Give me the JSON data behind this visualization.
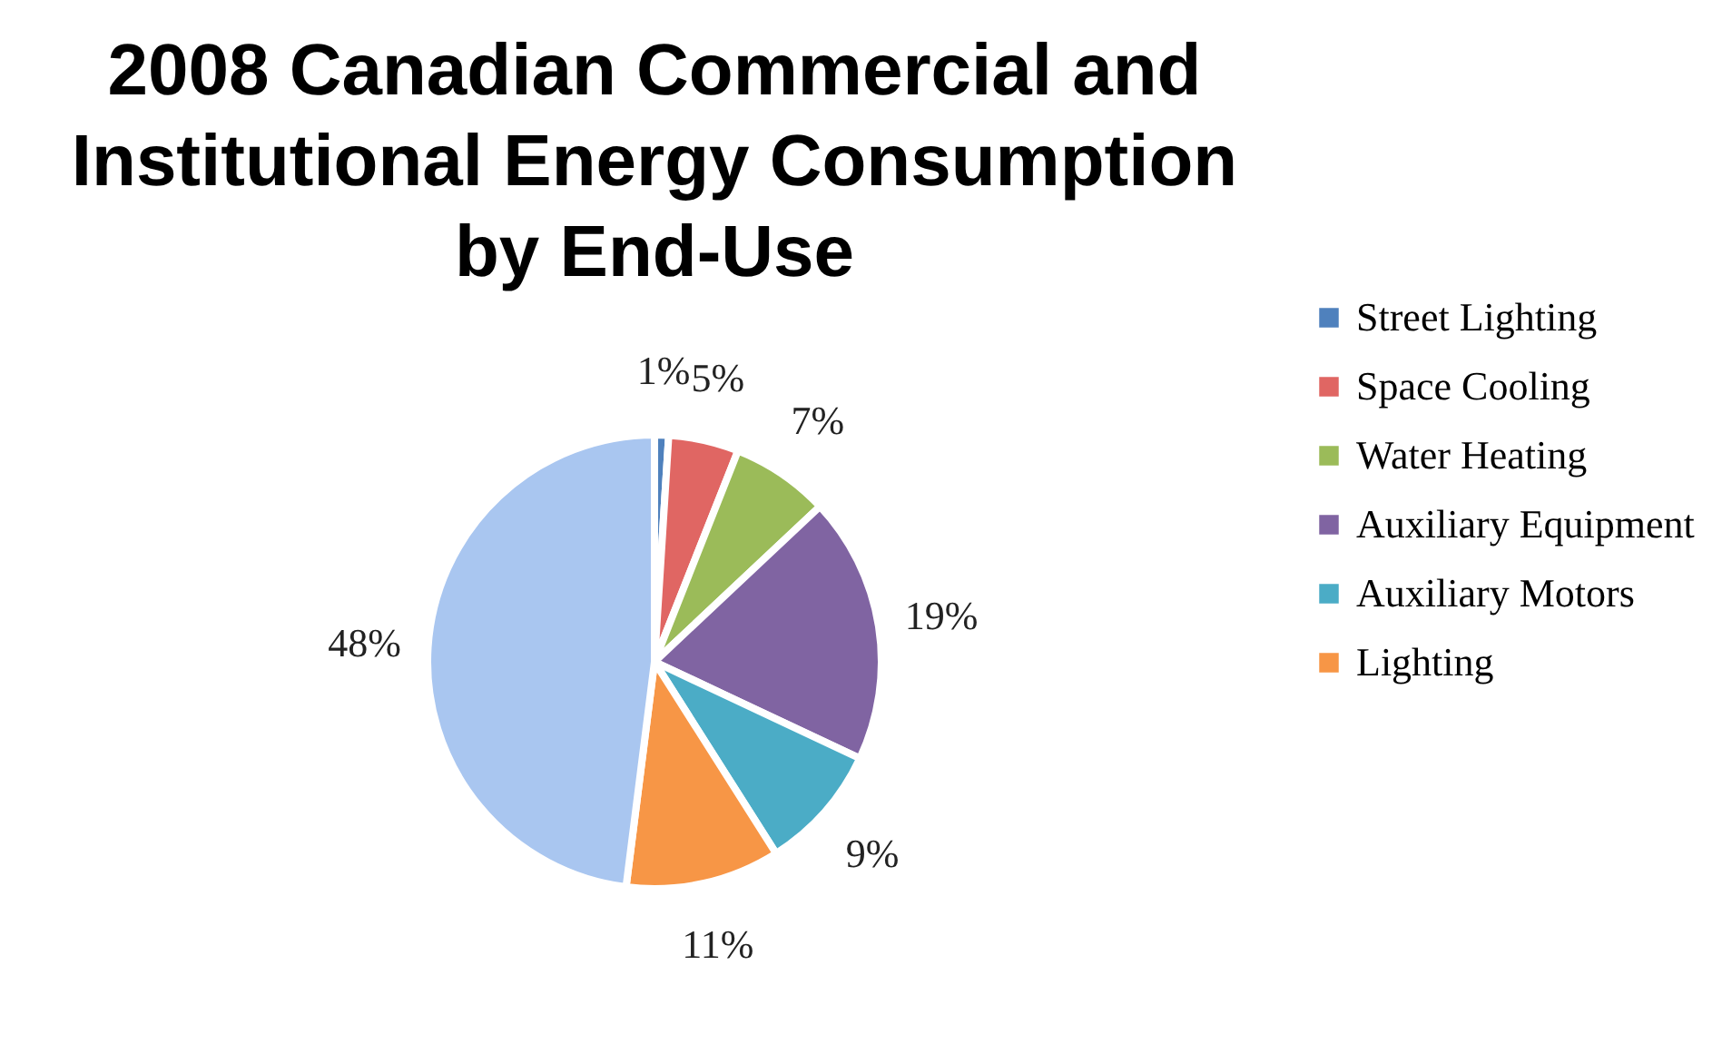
{
  "chart_data": {
    "type": "pie",
    "title": "2008 Canadian Commercial and Institutional Energy Consumption by End-Use",
    "categories": [
      "Street Lighting",
      "Space Cooling",
      "Water Heating",
      "Auxiliary Equipment",
      "Auxiliary Motors",
      "Lighting",
      null
    ],
    "values": [
      1,
      5,
      7,
      19,
      9,
      11,
      48
    ],
    "colors": [
      "#4f81bd",
      "#e06663",
      "#9bbb59",
      "#8064a2",
      "#4bacc6",
      "#f79646",
      "#a9c6f0"
    ],
    "value_labels": [
      "1%",
      "5%",
      "7%",
      "19%",
      "9%",
      "11%",
      "48%"
    ],
    "legend": "right"
  }
}
